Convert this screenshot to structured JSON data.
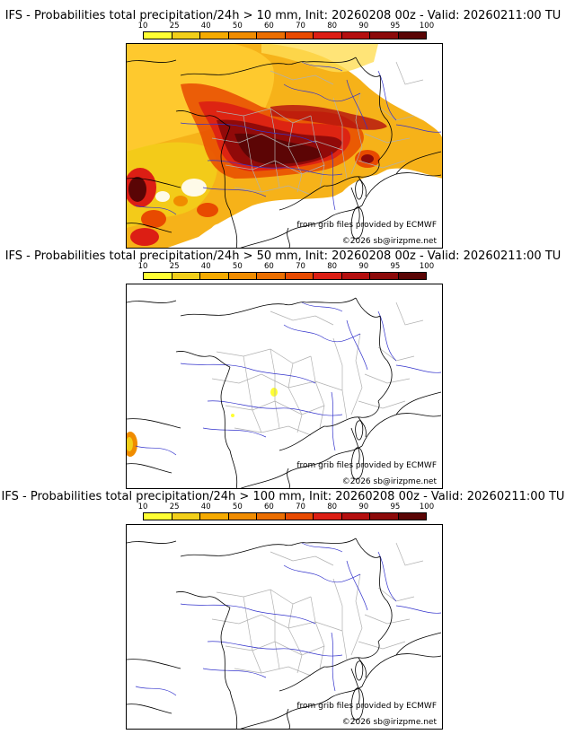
{
  "legend": {
    "ticks": [
      "10",
      "25",
      "40",
      "50",
      "60",
      "70",
      "80",
      "90",
      "95",
      "100"
    ],
    "colors": [
      "#ffff33",
      "#f2cf1a",
      "#f5aa00",
      "#f08c00",
      "#eb6e00",
      "#e84a00",
      "#dc1e14",
      "#b40f0f",
      "#8c0a0a",
      "#5a0505"
    ]
  },
  "colors": {
    "border_country": "#000000",
    "border_region": "#b0b0b0",
    "river": "#3333cc"
  },
  "panels": [
    {
      "title": "IFS - Probabilities total precipitation/24h > 10 mm, Init: 20260208 00z - Valid: 20260211:00 TU",
      "source": "from grib files provided by ECMWF",
      "copyright": "©2026 sb@irizpme.net"
    },
    {
      "title": "IFS - Probabilities total precipitation/24h > 50 mm, Init: 20260208 00z - Valid: 20260211:00 TU",
      "source": "from grib files provided by ECMWF",
      "copyright": "©2026 sb@irizpme.net"
    },
    {
      "title": "IFS - Probabilities total precipitation/24h > 100 mm, Init: 20260208 00z - Valid: 20260211:00 TU",
      "source": "from grib files provided by ECMWF",
      "copyright": "©2026 sb@irizpme.net"
    }
  ]
}
